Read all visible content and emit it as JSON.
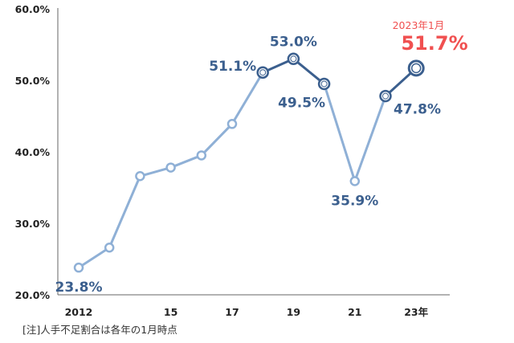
{
  "chart_data": {
    "type": "line",
    "x": [
      2012,
      2013,
      2014,
      2015,
      2016,
      2017,
      2018,
      2019,
      2020,
      2021,
      2022,
      2023
    ],
    "values": [
      23.8,
      26.6,
      36.6,
      37.8,
      39.5,
      43.9,
      51.1,
      53.0,
      49.5,
      35.9,
      47.8,
      51.7
    ],
    "ylim": [
      20,
      60
    ],
    "yticks": [
      "20.0%",
      "30.0%",
      "40.0%",
      "50.0%",
      "60.0%"
    ],
    "xticks": [
      {
        "x": 2012,
        "label": "2012"
      },
      {
        "x": 2015,
        "label": "15"
      },
      {
        "x": 2017,
        "label": "17"
      },
      {
        "x": 2019,
        "label": "19"
      },
      {
        "x": 2021,
        "label": "21"
      },
      {
        "x": 2023,
        "label": "23年"
      }
    ],
    "data_labels": [
      {
        "x": 2012,
        "text": "23.8%"
      },
      {
        "x": 2018,
        "text": "51.1%"
      },
      {
        "x": 2019,
        "text": "53.0%"
      },
      {
        "x": 2020,
        "text": "49.5%"
      },
      {
        "x": 2021,
        "text": "35.9%"
      },
      {
        "x": 2022,
        "text": "47.8%"
      }
    ],
    "highlight": {
      "x": 2023,
      "note": "2023年1月",
      "label": "51.7%",
      "color": "#f05050"
    },
    "footnote": "[注]人手不足割合は各年の1月時点",
    "colors": {
      "light": "#8fb0d6",
      "dark": "#3b5f8e",
      "axis": "#666666"
    }
  }
}
